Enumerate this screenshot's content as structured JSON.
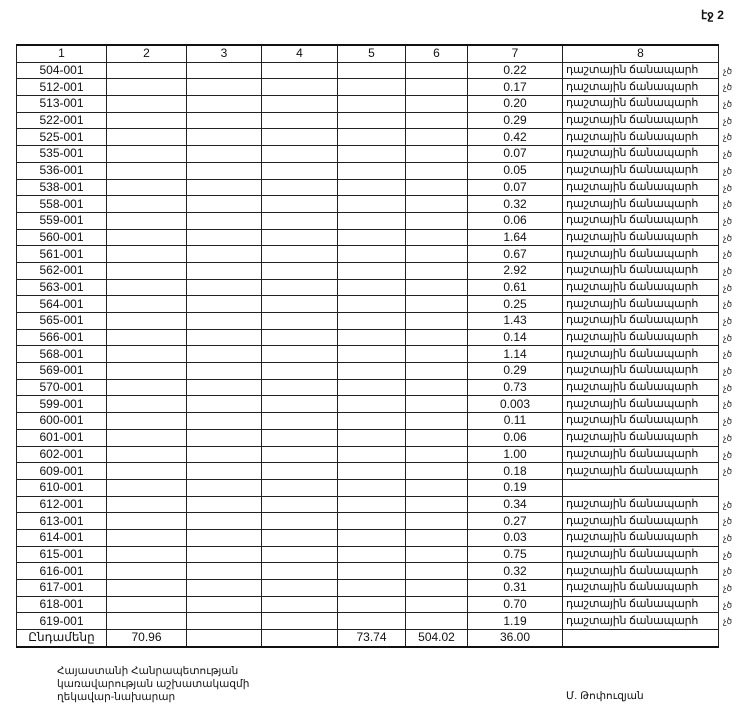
{
  "page_label": "էջ 2",
  "table": {
    "headers": [
      "1",
      "2",
      "3",
      "4",
      "5",
      "6",
      "7",
      "8"
    ],
    "rows": [
      {
        "code": "504-001",
        "value": "0.22",
        "type": "դաշտային ճանապարհ",
        "mark": "չծ"
      },
      {
        "code": "512-001",
        "value": "0.17",
        "type": "դաշտային ճանապարհ",
        "mark": "չծ"
      },
      {
        "code": "513-001",
        "value": "0.20",
        "type": "դաշտային ճանապարհ",
        "mark": "չծ"
      },
      {
        "code": "522-001",
        "value": "0.29",
        "type": "դաշտային ճանապարհ",
        "mark": "չծ"
      },
      {
        "code": "525-001",
        "value": "0.42",
        "type": "դաշտային ճանապարհ",
        "mark": "չծ"
      },
      {
        "code": "535-001",
        "value": "0.07",
        "type": "դաշտային ճանապարհ",
        "mark": "չծ"
      },
      {
        "code": "536-001",
        "value": "0.05",
        "type": "դաշտային ճանապարհ",
        "mark": "չծ"
      },
      {
        "code": "538-001",
        "value": "0.07",
        "type": "դաշտային ճանապարհ",
        "mark": "չծ"
      },
      {
        "code": "558-001",
        "value": "0.32",
        "type": "դաշտային ճանապարհ",
        "mark": "չծ"
      },
      {
        "code": "559-001",
        "value": "0.06",
        "type": "դաշտային ճանապարհ",
        "mark": "չծ"
      },
      {
        "code": "560-001",
        "value": "1.64",
        "type": "դաշտային ճանապարհ",
        "mark": "չծ"
      },
      {
        "code": "561-001",
        "value": "0.67",
        "type": "դաշտային ճանապարհ",
        "mark": "չծ"
      },
      {
        "code": "562-001",
        "value": "2.92",
        "type": "դաշտային ճանապարհ",
        "mark": "չծ"
      },
      {
        "code": "563-001",
        "value": "0.61",
        "type": "դաշտային ճանապարհ",
        "mark": "չծ"
      },
      {
        "code": "564-001",
        "value": "0.25",
        "type": "դաշտային ճանապարհ",
        "mark": "չծ"
      },
      {
        "code": "565-001",
        "value": "1.43",
        "type": "դաշտային ճանապարհ",
        "mark": "չծ"
      },
      {
        "code": "566-001",
        "value": "0.14",
        "type": "դաշտային ճանապարհ",
        "mark": "չծ"
      },
      {
        "code": "568-001",
        "value": "1.14",
        "type": "դաշտային ճանապարհ",
        "mark": "չծ"
      },
      {
        "code": "569-001",
        "value": "0.29",
        "type": "դաշտային ճանապարհ",
        "mark": "չծ"
      },
      {
        "code": "570-001",
        "value": "0.73",
        "type": "դաշտային ճանապարհ",
        "mark": "չծ"
      },
      {
        "code": "599-001",
        "value": "0.003",
        "type": "դաշտային ճանապարհ",
        "mark": "չծ"
      },
      {
        "code": "600-001",
        "value": "0.11",
        "type": "դաշտային ճանապարհ",
        "mark": "չծ"
      },
      {
        "code": "601-001",
        "value": "0.06",
        "type": "դաշտային ճանապարհ",
        "mark": "չծ"
      },
      {
        "code": "602-001",
        "value": "1.00",
        "type": "դաշտային ճանապարհ",
        "mark": "չծ"
      },
      {
        "code": "609-001",
        "value": "0.18",
        "type": "դաշտային ճանապարհ",
        "mark": "չծ"
      },
      {
        "code": "610-001",
        "value": "0.19",
        "type": "",
        "mark": ""
      },
      {
        "code": "612-001",
        "value": "0.34",
        "type": "դաշտային ճանապարհ",
        "mark": "չծ"
      },
      {
        "code": "613-001",
        "value": "0.27",
        "type": "դաշտային ճանապարհ",
        "mark": "չծ"
      },
      {
        "code": "614-001",
        "value": "0.03",
        "type": "դաշտային ճանապարհ",
        "mark": "չծ"
      },
      {
        "code": "615-001",
        "value": "0.75",
        "type": "դաշտային ճանապարհ",
        "mark": "չծ"
      },
      {
        "code": "616-001",
        "value": "0.32",
        "type": "դաշտային ճանապարհ",
        "mark": "չծ"
      },
      {
        "code": "617-001",
        "value": "0.31",
        "type": "դաշտային ճանապարհ",
        "mark": "չծ"
      },
      {
        "code": "618-001",
        "value": "0.70",
        "type": "դաշտային ճանապարհ",
        "mark": "չծ"
      },
      {
        "code": "619-001",
        "value": "1.19",
        "type": "դաշտային ճանապարհ",
        "mark": "չծ"
      }
    ],
    "total": {
      "label": "Ընդամենը",
      "c2": "70.96",
      "c3": "",
      "c4": "",
      "c5": "73.74",
      "c6": "504.02",
      "c7": "36.00",
      "c8": ""
    }
  },
  "footer": {
    "title_lines": [
      "Հայաստանի Հանրապետության",
      "կառավարության աշխատակազմի",
      "ղեկավար-նախարար"
    ],
    "signatory": "Մ. Թոփուզյան"
  }
}
